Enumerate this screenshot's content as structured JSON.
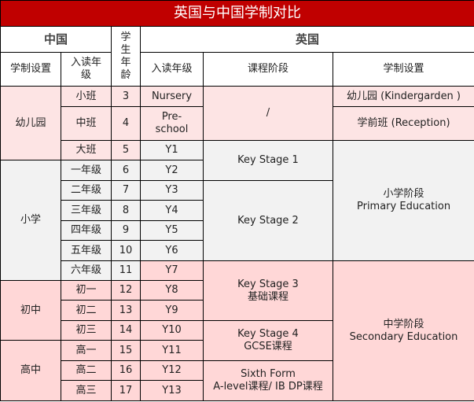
{
  "title": "英国与中国学制对比",
  "header": {
    "china": "中国",
    "age": "学\n生\n年\n龄",
    "uk": "英国",
    "china_system": "学制设置",
    "china_grade": "入读年\n级",
    "uk_grade": "入读年级",
    "uk_stage": "课程阶段",
    "uk_system": "学制设置"
  },
  "colors": {
    "title": "#c00000",
    "kindergarten": "#fde4e4",
    "primary": "#f2f2f2",
    "secondary": "#ffd7d7"
  },
  "groups": {
    "kindergarten": "幼儿园",
    "primary": "小学",
    "junior": "初中",
    "senior": "高中"
  },
  "rows": [
    {
      "cn": "小班",
      "age": "3",
      "uk": "Nursery"
    },
    {
      "cn": "中班",
      "age": "4",
      "uk": "Pre-\nschool"
    },
    {
      "cn": "大班",
      "age": "5",
      "uk": "Y1"
    },
    {
      "cn": "一年级",
      "age": "6",
      "uk": "Y2"
    },
    {
      "cn": "二年级",
      "age": "7",
      "uk": "Y3"
    },
    {
      "cn": "三年级",
      "age": "8",
      "uk": "Y4"
    },
    {
      "cn": "四年级",
      "age": "9",
      "uk": "Y5"
    },
    {
      "cn": "五年级",
      "age": "10",
      "uk": "Y6"
    },
    {
      "cn": "六年级",
      "age": "11",
      "uk": "Y7"
    },
    {
      "cn": "初一",
      "age": "12",
      "uk": "Y8"
    },
    {
      "cn": "初二",
      "age": "13",
      "uk": "Y9"
    },
    {
      "cn": "初三",
      "age": "14",
      "uk": "Y10"
    },
    {
      "cn": "高一",
      "age": "15",
      "uk": "Y11"
    },
    {
      "cn": "高二",
      "age": "16",
      "uk": "Y12"
    },
    {
      "cn": "高三",
      "age": "17",
      "uk": "Y13"
    }
  ],
  "stages": {
    "preschool": "/",
    "ks1": "Key Stage 1",
    "ks2": "Key Stage 2",
    "ks3": "Key Stage 3\n基础课程",
    "ks4": "Key Stage 4\nGCSE课程",
    "sixth": "Sixth Form\nA-level课程/ IB DP课程"
  },
  "uk_systems": {
    "kindergarden": "幼儿园 (Kindergarden )",
    "reception": "学前班 (Reception)",
    "primary": "小学阶段\nPrimary Education",
    "secondary": "中学阶段\nSecondary Education"
  }
}
